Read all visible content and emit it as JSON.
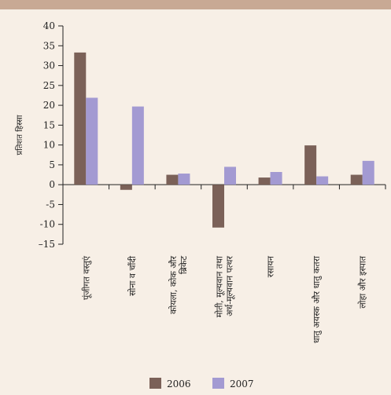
{
  "colors": {
    "series_2006": "#7b6158",
    "series_2007": "#a39ad2",
    "band": "#c8a994",
    "bg": "#f7efe6"
  },
  "chart_data": {
    "type": "bar",
    "ylabel": "प्रतिशत हिस्सा",
    "ylim": [
      -15,
      40
    ],
    "yticks": [
      40,
      35,
      30,
      25,
      20,
      15,
      10,
      5,
      0,
      -5,
      -10,
      -15
    ],
    "ytick_labels": [
      "40",
      "35",
      "30",
      "25",
      "20",
      "15",
      "10",
      "5",
      "0",
      "-5",
      "-10",
      "–15"
    ],
    "categories": [
      [
        "पूंजीगत वस्तुएं"
      ],
      [
        "सोना व चाँदी"
      ],
      [
        "कोयला, कोक और",
        "ब्रिकेट"
      ],
      [
        "मोती, मूल्यवान तथा",
        "अर्ध-मूल्यवान पत्थर"
      ],
      [
        "रसायन"
      ],
      [
        "धातु अयस्क और धातु कतरा"
      ],
      [
        "लोहा और इस्पात"
      ]
    ],
    "series": [
      {
        "name": "2006",
        "values": [
          33.3,
          -1.3,
          2.5,
          -10.8,
          1.8,
          9.9,
          2.5
        ]
      },
      {
        "name": "2007",
        "values": [
          21.9,
          19.7,
          2.8,
          4.5,
          3.2,
          2.1,
          6.0
        ]
      }
    ],
    "legend_position": "bottom"
  }
}
